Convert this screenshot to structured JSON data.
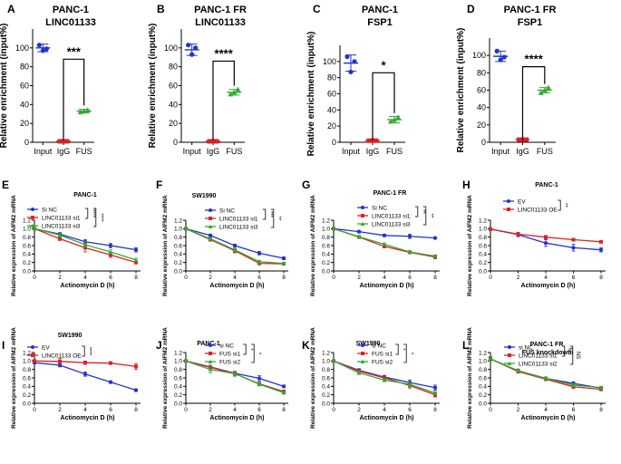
{
  "figure_title": "",
  "chart_data": [
    {
      "panel": "A",
      "type": "scatter",
      "title": [
        "PANC-1",
        "LINC01133"
      ],
      "ylabel": "Relative enrichment (input%)",
      "ylim": [
        0,
        120
      ],
      "yticks": [
        0,
        20,
        40,
        60,
        80,
        100
      ],
      "categories": [
        "Input",
        "IgG",
        "FUS"
      ],
      "colors": [
        "#2233cc",
        "#dd2222",
        "#33aa33"
      ],
      "means": [
        100,
        1,
        33
      ],
      "sd": [
        4,
        0.6,
        2
      ],
      "points": [
        [
          103,
          97,
          99
        ],
        [
          1,
          1,
          1
        ],
        [
          32,
          33,
          34
        ]
      ],
      "sig": "***",
      "sig_between": [
        1,
        2
      ]
    },
    {
      "panel": "B",
      "type": "scatter",
      "title": [
        "PANC-1 FR",
        "LINC01133"
      ],
      "ylabel": "Relative enrichment (input%)",
      "ylim": [
        0,
        120
      ],
      "yticks": [
        0,
        20,
        40,
        60,
        80,
        100
      ],
      "categories": [
        "Input",
        "IgG",
        "FUS"
      ],
      "colors": [
        "#2233cc",
        "#dd2222",
        "#33aa33"
      ],
      "means": [
        98,
        1,
        53
      ],
      "sd": [
        6,
        0.6,
        3
      ],
      "points": [
        [
          103,
          93,
          100
        ],
        [
          1,
          1,
          1
        ],
        [
          51,
          53,
          56
        ]
      ],
      "sig": "****",
      "sig_between": [
        1,
        2
      ]
    },
    {
      "panel": "C",
      "type": "scatter",
      "title": [
        "PANC-1",
        "FSP1"
      ],
      "ylabel": "Relative enrichment (input%)",
      "ylim": [
        0,
        120
      ],
      "yticks": [
        0,
        20,
        40,
        60,
        80,
        100
      ],
      "categories": [
        "Input",
        "IgG",
        "FUS"
      ],
      "colors": [
        "#2233cc",
        "#dd2222",
        "#33aa33"
      ],
      "means": [
        98,
        2,
        28
      ],
      "sd": [
        10,
        0.8,
        4
      ],
      "points": [
        [
          106,
          87,
          100
        ],
        [
          2,
          2,
          2
        ],
        [
          26,
          28,
          31
        ]
      ],
      "sig": "*",
      "sig_between": [
        1,
        2
      ]
    },
    {
      "panel": "D",
      "type": "scatter",
      "title": [
        "PANC-1 FR",
        "FSP1"
      ],
      "ylabel": "Relative enrichment (input%)",
      "ylim": [
        0,
        120
      ],
      "yticks": [
        0,
        20,
        40,
        60,
        80,
        100
      ],
      "categories": [
        "Input",
        "IgG",
        "FUS"
      ],
      "colors": [
        "#2233cc",
        "#dd2222",
        "#33aa33"
      ],
      "means": [
        99,
        3,
        60
      ],
      "sd": [
        6,
        0.8,
        3
      ],
      "points": [
        [
          105,
          95,
          98
        ],
        [
          3,
          3,
          3
        ],
        [
          57,
          60,
          63
        ]
      ],
      "sig": "****",
      "sig_between": [
        1,
        2
      ]
    },
    {
      "panel": "E",
      "type": "line",
      "title": [
        "PANC-1"
      ],
      "xlabel": "Actinomycin D (h)",
      "ylabel": "Relative expression of AIFM2 mRNA",
      "ylim": [
        0,
        1.2
      ],
      "yticks": [
        0,
        0.2,
        0.4,
        0.6,
        0.8,
        1.0,
        1.2
      ],
      "x": [
        0,
        2,
        4,
        6,
        8
      ],
      "xticks": [
        0,
        2,
        4,
        6,
        8
      ],
      "series": [
        {
          "name": "Si NC",
          "color": "#2233cc",
          "values": [
            1.0,
            0.87,
            0.69,
            0.6,
            0.5
          ],
          "err": [
            0.03,
            0.04,
            0.05,
            0.05,
            0.05
          ]
        },
        {
          "name": "LINC01133 si1",
          "color": "#dd2222",
          "values": [
            1.0,
            0.76,
            0.55,
            0.38,
            0.2
          ],
          "err": [
            0.03,
            0.04,
            0.1,
            0.06,
            0.03
          ]
        },
        {
          "name": "LINC01133 si3",
          "color": "#33aa33",
          "values": [
            1.0,
            0.85,
            0.62,
            0.45,
            0.26
          ],
          "err": [
            0.03,
            0.05,
            0.07,
            0.05,
            0.04
          ]
        }
      ],
      "sig": [
        "****",
        "****"
      ]
    },
    {
      "panel": "F",
      "type": "line",
      "title": [
        "SW1990"
      ],
      "xlabel": "Actinomycin D (h)",
      "ylabel": "Relative expression of AIFM2 mRNA",
      "ylim": [
        0,
        1.2
      ],
      "yticks": [
        0,
        0.2,
        0.4,
        0.6,
        0.8,
        1.0,
        1.2
      ],
      "x": [
        0,
        2,
        4,
        6,
        8
      ],
      "xticks": [
        0,
        2,
        4,
        6,
        8
      ],
      "series": [
        {
          "name": "Si NC",
          "color": "#2233cc",
          "values": [
            1.0,
            0.84,
            0.6,
            0.42,
            0.3
          ],
          "err": [
            0.03,
            0.03,
            0.03,
            0.04,
            0.03
          ]
        },
        {
          "name": "LINC01133 si1",
          "color": "#dd2222",
          "values": [
            1.0,
            0.74,
            0.48,
            0.18,
            0.17
          ],
          "err": [
            0.03,
            0.03,
            0.05,
            0.02,
            0.02
          ]
        },
        {
          "name": "LINC01133 si3",
          "color": "#33aa33",
          "values": [
            1.0,
            0.76,
            0.5,
            0.22,
            0.18
          ],
          "err": [
            0.03,
            0.03,
            0.04,
            0.03,
            0.02
          ]
        }
      ],
      "sig": [
        "***",
        "**"
      ]
    },
    {
      "panel": "G",
      "type": "line",
      "title": [
        "PANC-1 FR"
      ],
      "xlabel": "Actinomycin D (h)",
      "ylabel": "Relative expression of AIFM2 mRNA",
      "ylim": [
        0,
        1.2
      ],
      "yticks": [
        0,
        0.2,
        0.4,
        0.6,
        0.8,
        1.0,
        1.2
      ],
      "x": [
        0,
        2,
        4,
        6,
        8
      ],
      "xticks": [
        0,
        2,
        4,
        6,
        8
      ],
      "series": [
        {
          "name": "Si NC",
          "color": "#2233cc",
          "values": [
            1.0,
            0.93,
            0.84,
            0.82,
            0.78
          ],
          "err": [
            0.03,
            0.03,
            0.03,
            0.05,
            0.02
          ]
        },
        {
          "name": "LINC01133 si1",
          "color": "#dd2222",
          "values": [
            1.0,
            0.8,
            0.58,
            0.44,
            0.33
          ],
          "err": [
            0.03,
            0.03,
            0.03,
            0.03,
            0.04
          ]
        },
        {
          "name": "LINC01133 si3",
          "color": "#33aa33",
          "values": [
            1.0,
            0.81,
            0.63,
            0.45,
            0.35
          ],
          "err": [
            0.03,
            0.03,
            0.03,
            0.03,
            0.03
          ]
        }
      ],
      "sig": [
        "**",
        "**"
      ]
    },
    {
      "panel": "H",
      "type": "line",
      "title": [
        "PANC-1"
      ],
      "xlabel": "Actinomycin D (h)",
      "ylabel": "Relative expression of AIFM2 mRNA",
      "ylim": [
        0,
        1.2
      ],
      "yticks": [
        0,
        0.2,
        0.4,
        0.6,
        0.8,
        1.0,
        1.2
      ],
      "x": [
        0,
        2,
        4,
        6,
        8
      ],
      "xticks": [
        0,
        2,
        4,
        6,
        8
      ],
      "series": [
        {
          "name": "EV",
          "color": "#2233cc",
          "values": [
            0.99,
            0.86,
            0.66,
            0.55,
            0.5
          ],
          "err": [
            0.03,
            0.05,
            0.08,
            0.08,
            0.05
          ]
        },
        {
          "name": "LINC01133 OE",
          "color": "#dd2222",
          "values": [
            0.99,
            0.87,
            0.8,
            0.74,
            0.69
          ],
          "err": [
            0.03,
            0.04,
            0.04,
            0.03,
            0.02
          ]
        }
      ],
      "sig": [
        "**"
      ]
    },
    {
      "panel": "I",
      "type": "line",
      "title": [
        "SW1990"
      ],
      "xlabel": "Actinomycin D (h)",
      "ylabel": "Relative expression of AIFM2 mRNA",
      "ylim": [
        0,
        1.2
      ],
      "yticks": [
        0,
        0.2,
        0.4,
        0.6,
        0.8,
        1.0,
        1.2
      ],
      "x": [
        0,
        2,
        4,
        6,
        8
      ],
      "xticks": [
        0,
        2,
        4,
        6,
        8
      ],
      "series": [
        {
          "name": "EV",
          "color": "#2233cc",
          "values": [
            0.96,
            0.9,
            0.69,
            0.5,
            0.31
          ],
          "err": [
            0.03,
            0.04,
            0.05,
            0.03,
            0.03
          ]
        },
        {
          "name": "LINC01133 OE",
          "color": "#dd2222",
          "values": [
            1.0,
            0.99,
            0.96,
            0.95,
            0.87
          ],
          "err": [
            0.03,
            0.07,
            0.04,
            0.03,
            0.07
          ]
        }
      ],
      "sig": [
        "****"
      ]
    },
    {
      "panel": "J",
      "type": "line",
      "title": [
        "PANC-1"
      ],
      "xlabel": "Actinomycin D (h)",
      "ylabel": "Relative expression of AIFM2 mRNA",
      "ylim": [
        0,
        1.2
      ],
      "yticks": [
        0,
        0.2,
        0.4,
        0.6,
        0.8,
        1.0,
        1.2
      ],
      "x": [
        0,
        2,
        4,
        6,
        8
      ],
      "xticks": [
        0,
        2,
        4,
        6,
        8
      ],
      "series": [
        {
          "name": "si NC",
          "color": "#2233cc",
          "values": [
            1.0,
            0.86,
            0.71,
            0.59,
            0.4
          ],
          "err": [
            0.03,
            0.04,
            0.04,
            0.06,
            0.03
          ]
        },
        {
          "name": "FUS si1",
          "color": "#dd2222",
          "values": [
            1.0,
            0.85,
            0.7,
            0.46,
            0.28
          ],
          "err": [
            0.03,
            0.04,
            0.06,
            0.04,
            0.03
          ]
        },
        {
          "name": "FUS si2",
          "color": "#33aa33",
          "values": [
            1.0,
            0.8,
            0.7,
            0.45,
            0.25
          ],
          "err": [
            0.03,
            0.08,
            0.05,
            0.04,
            0.03
          ]
        }
      ],
      "sig": [
        "*",
        "*"
      ]
    },
    {
      "panel": "K",
      "type": "line",
      "title": [
        "SW1990"
      ],
      "xlabel": "Actinomycin D (h)",
      "ylabel": "Relative expression of AIFM2 mRNA",
      "ylim": [
        0,
        1.2
      ],
      "yticks": [
        0,
        0.2,
        0.4,
        0.6,
        0.8,
        1.0,
        1.2
      ],
      "x": [
        0,
        2,
        4,
        6,
        8
      ],
      "xticks": [
        0,
        2,
        4,
        6,
        8
      ],
      "series": [
        {
          "name": "si NC",
          "color": "#2233cc",
          "values": [
            1.0,
            0.78,
            0.62,
            0.49,
            0.37
          ],
          "err": [
            0.03,
            0.04,
            0.04,
            0.06,
            0.06
          ]
        },
        {
          "name": "FUS si1",
          "color": "#dd2222",
          "values": [
            1.0,
            0.76,
            0.6,
            0.42,
            0.2
          ],
          "err": [
            0.03,
            0.04,
            0.04,
            0.06,
            0.05
          ]
        },
        {
          "name": "FUS si2",
          "color": "#33aa33",
          "values": [
            1.0,
            0.72,
            0.55,
            0.45,
            0.24
          ],
          "err": [
            0.03,
            0.04,
            0.04,
            0.05,
            0.04
          ]
        }
      ],
      "sig": [
        "*",
        "*"
      ]
    },
    {
      "panel": "L",
      "type": "line",
      "title": [
        "PANC-1 FR",
        "FUS knockdown"
      ],
      "xlabel": "Actinomycin D (h)",
      "ylabel": "Relative expression of AIFM2 mRNA",
      "ylim": [
        0,
        1.2
      ],
      "yticks": [
        0,
        0.2,
        0.4,
        0.6,
        0.8,
        1.0,
        1.2
      ],
      "x": [
        0,
        2,
        4,
        6,
        8
      ],
      "xticks": [
        0,
        2,
        4,
        6,
        8
      ],
      "series": [
        {
          "name": "si NC",
          "color": "#2233cc",
          "values": [
            1.05,
            0.77,
            0.59,
            0.47,
            0.36
          ],
          "err": [
            0.05,
            0.04,
            0.03,
            0.04,
            0.03
          ]
        },
        {
          "name": "LINC01133 si1",
          "color": "#dd2222",
          "values": [
            1.05,
            0.75,
            0.57,
            0.39,
            0.33
          ],
          "err": [
            0.05,
            0.04,
            0.03,
            0.04,
            0.03
          ]
        },
        {
          "name": "LINC01133 si2",
          "color": "#33aa33",
          "values": [
            1.05,
            0.77,
            0.59,
            0.43,
            0.37
          ],
          "err": [
            0.05,
            0.04,
            0.03,
            0.04,
            0.03
          ]
        }
      ],
      "sig": [
        "NS",
        "NS"
      ]
    }
  ]
}
